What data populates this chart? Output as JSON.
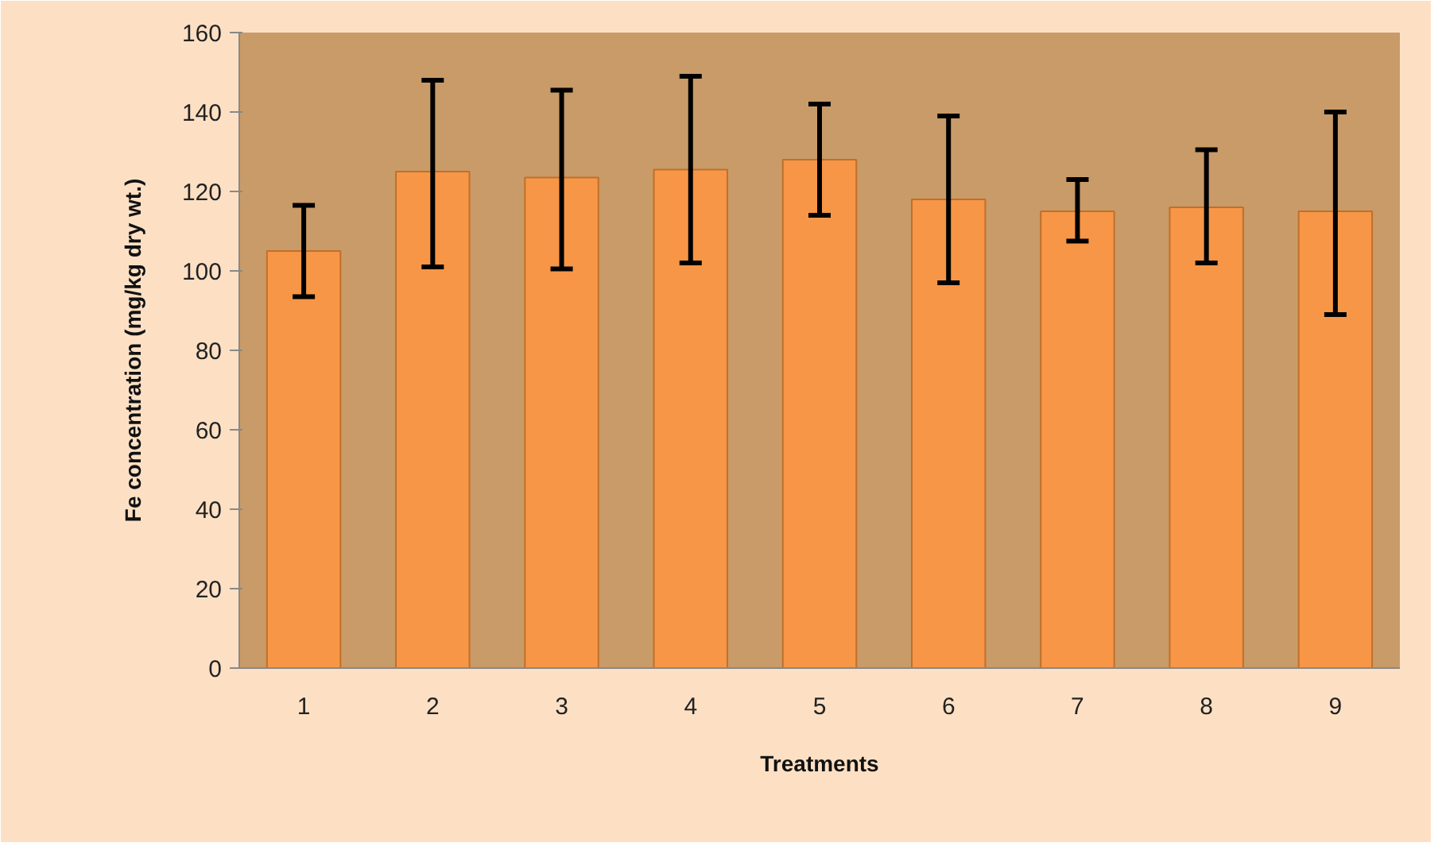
{
  "chart_data": {
    "type": "bar",
    "xlabel": "Treatments",
    "ylabel": "Fe concentration (mg/kg dry wt.)",
    "categories": [
      "1",
      "2",
      "3",
      "4",
      "5",
      "6",
      "7",
      "8",
      "9"
    ],
    "values": [
      105,
      125,
      123.5,
      125.5,
      128,
      118,
      115,
      116,
      115
    ],
    "errors": [
      [
        93.5,
        116.5
      ],
      [
        101,
        148
      ],
      [
        100.5,
        145.5
      ],
      [
        102,
        149
      ],
      [
        114,
        142
      ],
      [
        97,
        139
      ],
      [
        107.5,
        123
      ],
      [
        102,
        130.5
      ],
      [
        89,
        140
      ]
    ],
    "color": "#f79646",
    "ylim": [
      0,
      160
    ],
    "yticks": [
      0,
      20,
      40,
      60,
      80,
      100,
      120,
      140,
      160
    ],
    "grid": false
  }
}
